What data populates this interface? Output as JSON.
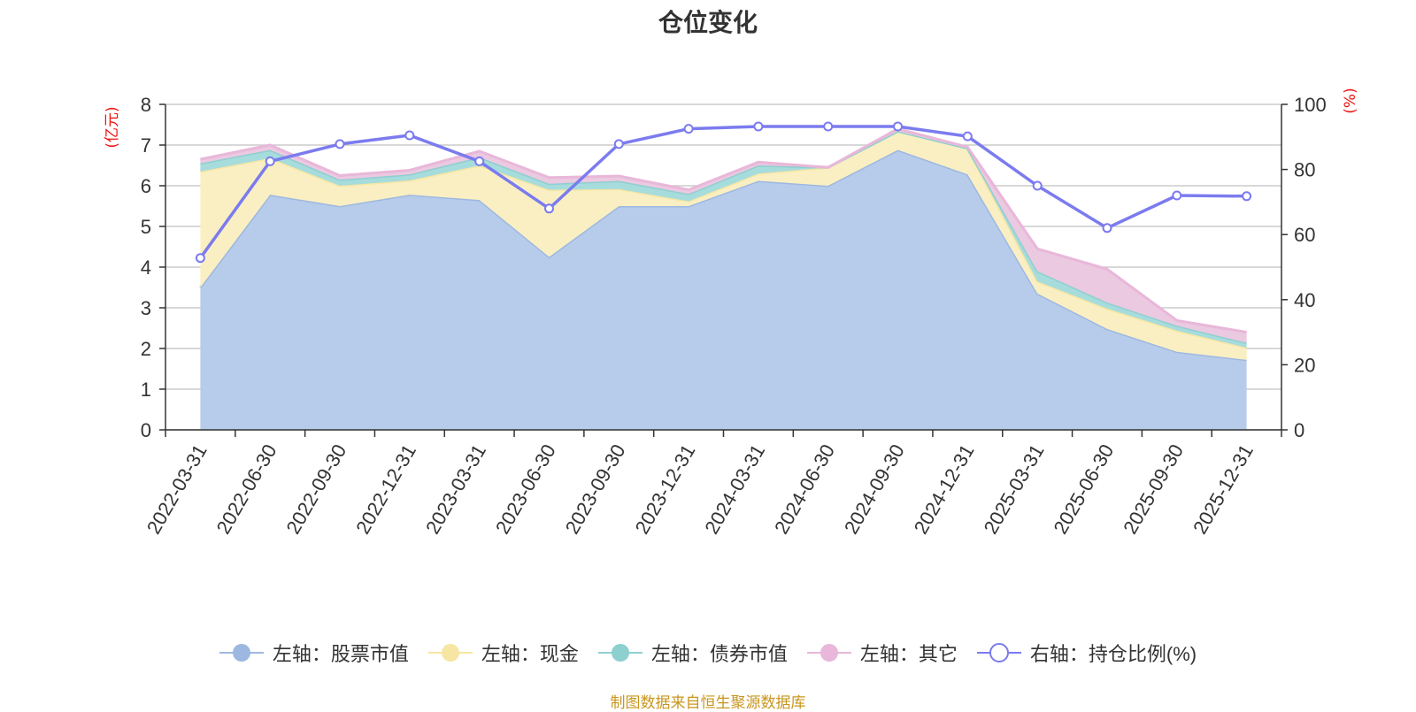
{
  "chart_data": {
    "type": "area",
    "title": "仓位变化",
    "categories": [
      "2022-03-31",
      "2022-06-30",
      "2022-09-30",
      "2022-12-31",
      "2023-03-31",
      "2023-06-30",
      "2023-09-30",
      "2023-12-31",
      "2024-03-31",
      "2024-06-30",
      "2024-09-30",
      "2024-12-31",
      "2025-03-31",
      "2025-06-30",
      "2025-09-30",
      "2025-12-31"
    ],
    "left_axis": {
      "label": "(亿元)",
      "ylim": [
        0,
        8
      ],
      "ticks": [
        "0",
        "1",
        "2",
        "3",
        "4",
        "5",
        "6",
        "7",
        "8"
      ]
    },
    "right_axis": {
      "label": "(%)",
      "ylim": [
        0,
        100
      ],
      "ticks": [
        "0",
        "20",
        "40",
        "60",
        "80",
        "100"
      ]
    },
    "stacked": true,
    "series": [
      {
        "name": "左轴：股票市值",
        "axis": "left",
        "type": "area",
        "color": "#9db8e0",
        "fill": "#b7cceb",
        "values": [
          3.5,
          5.78,
          5.5,
          5.78,
          5.65,
          4.25,
          5.5,
          5.5,
          6.12,
          6.0,
          6.88,
          6.28,
          3.35,
          2.48,
          1.92,
          1.72
        ]
      },
      {
        "name": "左轴：现金",
        "axis": "left",
        "type": "area",
        "color": "#f7e6a3",
        "fill": "#faefc2",
        "values": [
          2.85,
          0.9,
          0.5,
          0.35,
          0.85,
          1.65,
          0.42,
          0.12,
          0.18,
          0.45,
          0.46,
          0.64,
          0.3,
          0.5,
          0.52,
          0.3
        ]
      },
      {
        "name": "左轴：债券市值",
        "axis": "left",
        "type": "area",
        "color": "#8ecfd0",
        "fill": "#a7dcdc",
        "values": [
          0.2,
          0.2,
          0.15,
          0.15,
          0.2,
          0.15,
          0.2,
          0.18,
          0.2,
          0.0,
          0.0,
          0.0,
          0.25,
          0.15,
          0.12,
          0.12
        ]
      },
      {
        "name": "左轴：其它",
        "axis": "left",
        "type": "area",
        "color": "#e8b7d9",
        "fill": "#ebc9e1",
        "values": [
          0.1,
          0.12,
          0.1,
          0.1,
          0.15,
          0.15,
          0.12,
          0.1,
          0.08,
          0.0,
          0.06,
          0.03,
          0.55,
          0.82,
          0.13,
          0.26
        ]
      },
      {
        "name": "右轴：持仓比例(%)",
        "axis": "right",
        "type": "line",
        "color": "#7b7bef",
        "values": [
          52.8,
          82.5,
          87.8,
          90.5,
          82.5,
          68.0,
          87.8,
          92.5,
          93.2,
          93.2,
          93.2,
          90.2,
          75.0,
          62.0,
          72.0,
          71.8
        ]
      }
    ],
    "grid": true,
    "legend_position": "bottom"
  },
  "legend": [
    {
      "label": "左轴：股票市值"
    },
    {
      "label": "左轴：现金"
    },
    {
      "label": "左轴：债券市值"
    },
    {
      "label": "左轴：其它"
    },
    {
      "label": "右轴：持仓比例(%)"
    }
  ],
  "source_note": "制图数据来自恒生聚源数据库"
}
